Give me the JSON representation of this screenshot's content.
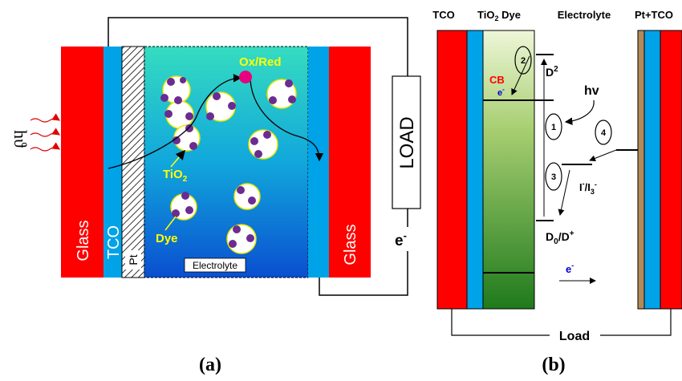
{
  "panel_a": {
    "caption": "(a)",
    "light_symbol": "hϑ",
    "glass_left": "Glass",
    "tco": "TCO",
    "pt": "Pt",
    "ox_red": "Ox/Red",
    "tio2": "TiO",
    "tio2_sub": "2",
    "dye": "Dye",
    "electrolyte": "Electrolyte",
    "glass_right": "Glass",
    "load": "LOAD",
    "electron": "e",
    "electron_sup": "-",
    "colors": {
      "glass": "#ff0000",
      "tco": "#00a2e8",
      "ox_red": "#e6007e",
      "label_yellow": "#ffff00",
      "dye_particle": "#6a2c91",
      "light_rays": "#e00000"
    }
  },
  "panel_b": {
    "caption": "(b)",
    "header_tco": "TCO",
    "header_tio2": "TiO",
    "header_tio2_sub": "2",
    "header_dye": "Dye",
    "header_electrolyte": "Electrolyte",
    "header_pt_tco": "Pt+TCO",
    "cb": "CB",
    "cb_electron": "e",
    "cb_electron_sup": "-",
    "d2": "D",
    "d2_sup": "2",
    "hv": "hv",
    "step1": "1",
    "step2": "2",
    "step3": "3",
    "step4": "4",
    "redox": "I",
    "redox_sup1": "-",
    "redox_mid": "/I",
    "redox_sub": "3",
    "redox_sup2": "-",
    "d0": "D",
    "d0_sub": "0",
    "d0_rest": "/D",
    "d0_sup": "+",
    "electron_flow": "e",
    "electron_flow_sup": "-",
    "load": "Load",
    "colors": {
      "electrode_red": "#ff0000",
      "tco_blue": "#00a2e8",
      "cb_text": "#ff0000",
      "electron_blue": "#0000cc"
    }
  }
}
